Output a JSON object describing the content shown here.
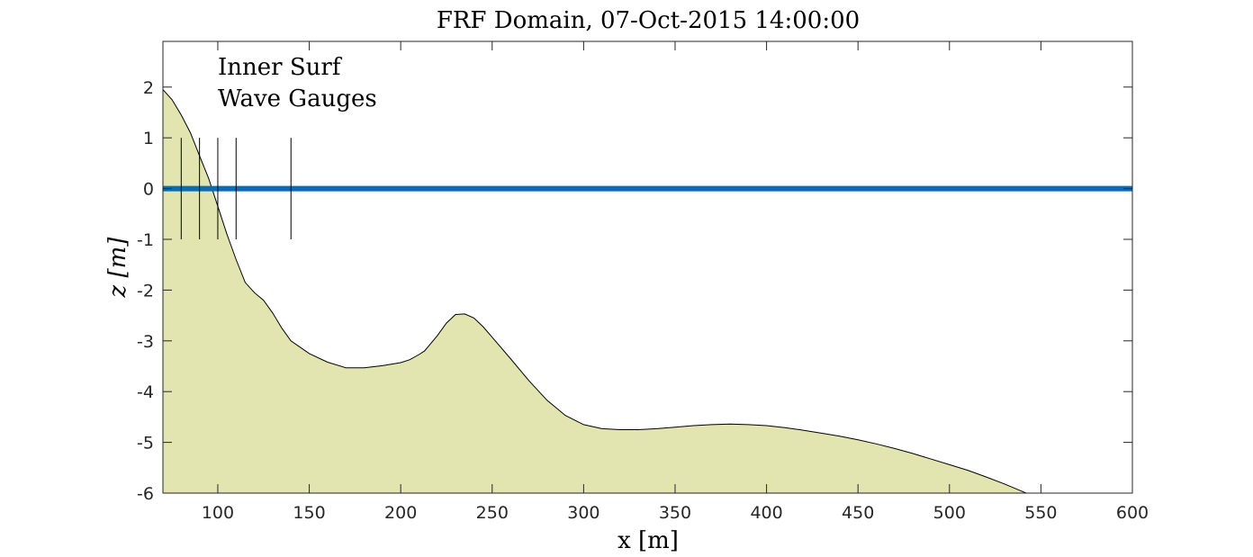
{
  "chart_data": {
    "type": "area",
    "title": "FRF Domain, 07-Oct-2015 14:00:00",
    "xlabel": "x [m]",
    "ylabel": "z [m]",
    "xlim": [
      70,
      600
    ],
    "ylim": [
      -6,
      2.9
    ],
    "xticks": [
      100,
      150,
      200,
      250,
      300,
      350,
      400,
      450,
      500,
      550,
      600
    ],
    "yticks": [
      -6,
      -5,
      -4,
      -3,
      -2,
      -1,
      0,
      1,
      2
    ],
    "grid": false,
    "annotation": [
      "Inner Surf",
      "Wave Gauges"
    ],
    "colors": {
      "bathymetry_fill": "#e3e5b1",
      "bathymetry_edge": "#000000",
      "water_level": "#0a6cb5",
      "gauges": "#000000"
    },
    "series": [
      {
        "type": "area",
        "x": [
          70,
          75,
          80,
          85,
          90,
          95,
          100,
          105,
          110,
          115,
          120,
          125,
          130,
          135,
          140,
          150,
          160,
          170,
          180,
          190,
          200,
          205,
          210,
          213,
          220,
          225,
          230,
          235,
          240,
          245,
          250,
          260,
          270,
          280,
          290,
          300,
          310,
          320,
          330,
          340,
          350,
          360,
          370,
          380,
          390,
          400,
          410,
          420,
          430,
          440,
          450,
          460,
          470,
          480,
          490,
          500,
          510,
          520,
          530,
          540,
          542,
          600
        ],
        "y": [
          1.95,
          1.75,
          1.45,
          1.1,
          0.65,
          0.2,
          -0.35,
          -0.9,
          -1.4,
          -1.85,
          -2.05,
          -2.2,
          -2.45,
          -2.75,
          -3.0,
          -3.25,
          -3.42,
          -3.53,
          -3.53,
          -3.49,
          -3.43,
          -3.37,
          -3.27,
          -3.2,
          -2.9,
          -2.65,
          -2.48,
          -2.47,
          -2.55,
          -2.72,
          -2.93,
          -3.35,
          -3.78,
          -4.17,
          -4.47,
          -4.65,
          -4.73,
          -4.75,
          -4.75,
          -4.73,
          -4.7,
          -4.67,
          -4.65,
          -4.64,
          -4.65,
          -4.67,
          -4.71,
          -4.76,
          -4.82,
          -4.88,
          -4.95,
          -5.03,
          -5.12,
          -5.22,
          -5.33,
          -5.44,
          -5.55,
          -5.68,
          -5.82,
          -5.97,
          -6.0,
          -6.0
        ]
      },
      {
        "type": "line",
        "name": "water level",
        "x": [
          70,
          600
        ],
        "y": [
          0,
          0
        ]
      },
      {
        "type": "segments",
        "name": "wave gauges",
        "x": [
          80,
          90,
          100,
          110,
          140
        ],
        "y_range": [
          -1,
          1
        ]
      }
    ]
  }
}
